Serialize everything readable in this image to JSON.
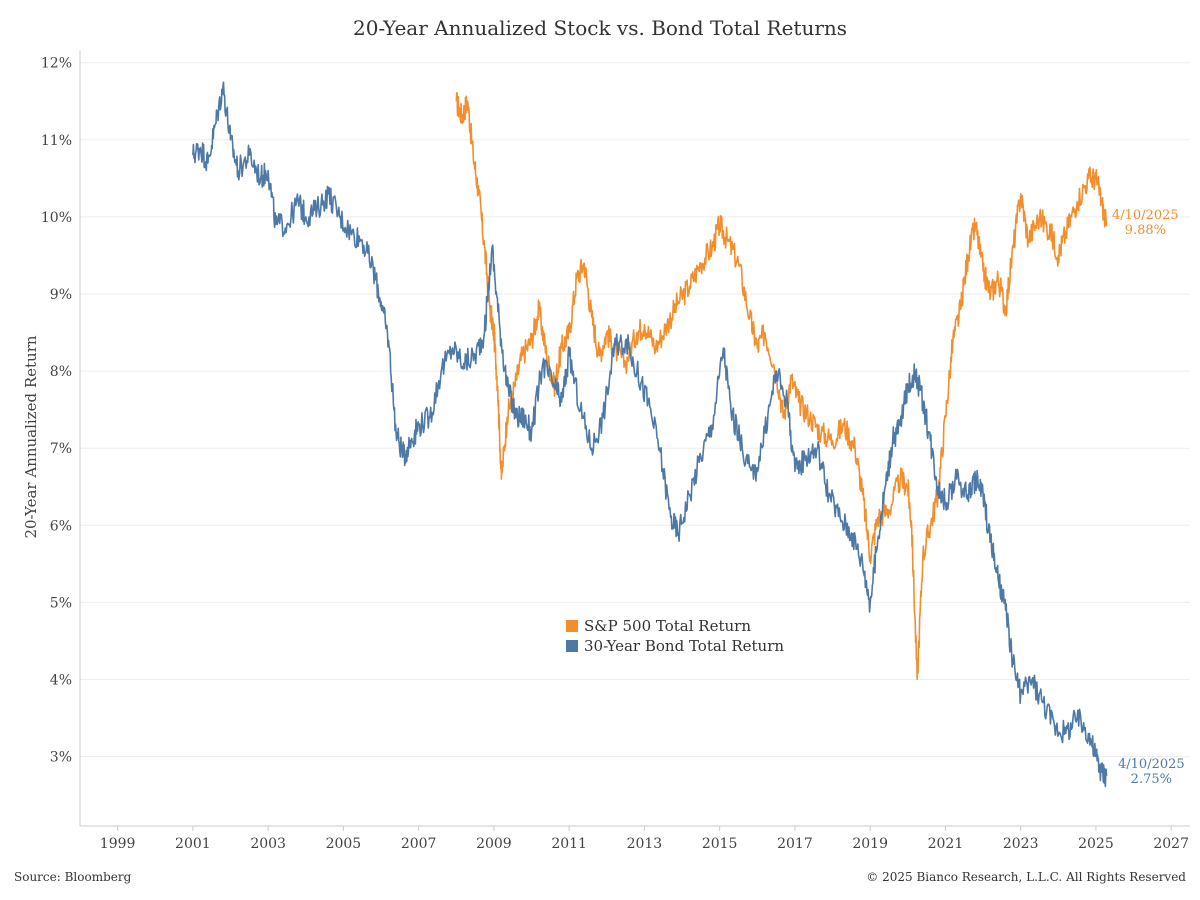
{
  "chart_data": {
    "type": "line",
    "title": "20-Year Annualized Stock vs. Bond Total Returns",
    "ylabel": "20-Year Annualized Return",
    "xlabel": "",
    "x_ticks": [
      "1999",
      "2001",
      "2003",
      "2005",
      "2007",
      "2009",
      "2011",
      "2013",
      "2015",
      "2017",
      "2019",
      "2021",
      "2023",
      "2025",
      "2027"
    ],
    "y_ticks": [
      "3%",
      "4%",
      "5%",
      "6%",
      "7%",
      "8%",
      "9%",
      "10%",
      "11%",
      "12%"
    ],
    "xlim": [
      1998,
      2027.5
    ],
    "ylim": [
      2.1,
      12.1
    ],
    "grid": "horizontal",
    "legend_position": "center",
    "series": [
      {
        "name": "S&P 500 Total Return",
        "color": "#f28e2b",
        "end_label": {
          "date": "4/10/2025",
          "value": "9.88%"
        },
        "points": [
          [
            2008.0,
            11.5
          ],
          [
            2008.15,
            11.3
          ],
          [
            2008.3,
            11.5
          ],
          [
            2008.45,
            10.8
          ],
          [
            2008.6,
            10.3
          ],
          [
            2008.75,
            9.6
          ],
          [
            2008.9,
            8.8
          ],
          [
            2009.0,
            8.5
          ],
          [
            2009.1,
            7.8
          ],
          [
            2009.2,
            6.6
          ],
          [
            2009.35,
            7.4
          ],
          [
            2009.55,
            7.8
          ],
          [
            2009.75,
            8.2
          ],
          [
            2010.0,
            8.4
          ],
          [
            2010.2,
            8.8
          ],
          [
            2010.4,
            8.2
          ],
          [
            2010.6,
            7.8
          ],
          [
            2010.8,
            8.3
          ],
          [
            2011.0,
            8.5
          ],
          [
            2011.2,
            9.2
          ],
          [
            2011.4,
            9.4
          ],
          [
            2011.6,
            8.7
          ],
          [
            2011.8,
            8.2
          ],
          [
            2012.0,
            8.5
          ],
          [
            2012.2,
            8.3
          ],
          [
            2012.5,
            8.1
          ],
          [
            2012.8,
            8.5
          ],
          [
            2013.0,
            8.6
          ],
          [
            2013.3,
            8.3
          ],
          [
            2013.6,
            8.6
          ],
          [
            2013.9,
            8.9
          ],
          [
            2014.2,
            9.1
          ],
          [
            2014.5,
            9.4
          ],
          [
            2014.8,
            9.6
          ],
          [
            2015.0,
            9.9
          ],
          [
            2015.2,
            9.7
          ],
          [
            2015.5,
            9.4
          ],
          [
            2015.8,
            8.7
          ],
          [
            2016.0,
            8.3
          ],
          [
            2016.2,
            8.5
          ],
          [
            2016.5,
            8.0
          ],
          [
            2016.7,
            7.4
          ],
          [
            2016.9,
            7.9
          ],
          [
            2017.1,
            7.6
          ],
          [
            2017.4,
            7.4
          ],
          [
            2017.7,
            7.2
          ],
          [
            2018.0,
            7.1
          ],
          [
            2018.3,
            7.3
          ],
          [
            2018.6,
            7.0
          ],
          [
            2018.8,
            6.4
          ],
          [
            2019.0,
            5.6
          ],
          [
            2019.2,
            6.1
          ],
          [
            2019.5,
            6.2
          ],
          [
            2019.8,
            6.6
          ],
          [
            2020.0,
            6.5
          ],
          [
            2020.1,
            6.0
          ],
          [
            2020.25,
            4.0
          ],
          [
            2020.4,
            5.6
          ],
          [
            2020.6,
            6.0
          ],
          [
            2020.8,
            6.4
          ],
          [
            2021.0,
            7.4
          ],
          [
            2021.2,
            8.4
          ],
          [
            2021.4,
            8.8
          ],
          [
            2021.6,
            9.5
          ],
          [
            2021.8,
            9.9
          ],
          [
            2022.0,
            9.3
          ],
          [
            2022.2,
            9.0
          ],
          [
            2022.4,
            9.2
          ],
          [
            2022.6,
            8.8
          ],
          [
            2022.8,
            9.6
          ],
          [
            2023.0,
            10.3
          ],
          [
            2023.2,
            9.7
          ],
          [
            2023.5,
            10.0
          ],
          [
            2023.8,
            9.8
          ],
          [
            2024.0,
            9.5
          ],
          [
            2024.2,
            9.8
          ],
          [
            2024.5,
            10.2
          ],
          [
            2024.8,
            10.5
          ],
          [
            2025.0,
            10.5
          ],
          [
            2025.15,
            10.2
          ],
          [
            2025.28,
            9.88
          ]
        ]
      },
      {
        "name": "30-Year Bond Total Return",
        "color": "#4e79a7",
        "end_label": {
          "date": "4/10/2025",
          "value": "2.75%"
        },
        "points": [
          [
            2001.0,
            10.8
          ],
          [
            2001.2,
            10.9
          ],
          [
            2001.4,
            10.7
          ],
          [
            2001.6,
            11.2
          ],
          [
            2001.8,
            11.7
          ],
          [
            2002.0,
            11.0
          ],
          [
            2002.2,
            10.6
          ],
          [
            2002.5,
            10.8
          ],
          [
            2002.8,
            10.5
          ],
          [
            2003.0,
            10.6
          ],
          [
            2003.2,
            9.9
          ],
          [
            2003.5,
            9.9
          ],
          [
            2003.8,
            10.2
          ],
          [
            2004.0,
            10.0
          ],
          [
            2004.3,
            10.1
          ],
          [
            2004.6,
            10.3
          ],
          [
            2004.9,
            10.0
          ],
          [
            2005.2,
            9.8
          ],
          [
            2005.5,
            9.7
          ],
          [
            2005.8,
            9.3
          ],
          [
            2006.0,
            8.9
          ],
          [
            2006.2,
            8.4
          ],
          [
            2006.4,
            7.2
          ],
          [
            2006.6,
            6.9
          ],
          [
            2006.8,
            7.1
          ],
          [
            2007.0,
            7.3
          ],
          [
            2007.3,
            7.4
          ],
          [
            2007.6,
            8.0
          ],
          [
            2007.9,
            8.3
          ],
          [
            2008.2,
            8.1
          ],
          [
            2008.5,
            8.2
          ],
          [
            2008.75,
            8.5
          ],
          [
            2008.95,
            9.6
          ],
          [
            2009.15,
            8.6
          ],
          [
            2009.35,
            7.8
          ],
          [
            2009.6,
            7.4
          ],
          [
            2009.8,
            7.4
          ],
          [
            2010.0,
            7.2
          ],
          [
            2010.3,
            8.1
          ],
          [
            2010.6,
            7.8
          ],
          [
            2010.8,
            7.6
          ],
          [
            2011.0,
            8.2
          ],
          [
            2011.3,
            7.5
          ],
          [
            2011.6,
            7.0
          ],
          [
            2011.9,
            7.4
          ],
          [
            2012.2,
            8.3
          ],
          [
            2012.5,
            8.4
          ],
          [
            2012.8,
            8.0
          ],
          [
            2013.1,
            7.6
          ],
          [
            2013.4,
            7.0
          ],
          [
            2013.7,
            6.1
          ],
          [
            2013.9,
            5.9
          ],
          [
            2014.2,
            6.4
          ],
          [
            2014.5,
            6.9
          ],
          [
            2014.8,
            7.3
          ],
          [
            2015.1,
            8.3
          ],
          [
            2015.3,
            7.5
          ],
          [
            2015.6,
            7.0
          ],
          [
            2015.9,
            6.6
          ],
          [
            2016.2,
            7.2
          ],
          [
            2016.5,
            8.0
          ],
          [
            2016.8,
            7.6
          ],
          [
            2017.0,
            6.7
          ],
          [
            2017.3,
            6.9
          ],
          [
            2017.6,
            7.0
          ],
          [
            2017.9,
            6.4
          ],
          [
            2018.2,
            6.1
          ],
          [
            2018.5,
            5.9
          ],
          [
            2018.8,
            5.5
          ],
          [
            2019.0,
            5.0
          ],
          [
            2019.2,
            5.8
          ],
          [
            2019.4,
            6.5
          ],
          [
            2019.6,
            7.1
          ],
          [
            2019.8,
            7.3
          ],
          [
            2020.0,
            7.8
          ],
          [
            2020.2,
            8.0
          ],
          [
            2020.4,
            7.6
          ],
          [
            2020.6,
            7.1
          ],
          [
            2020.8,
            6.5
          ],
          [
            2021.0,
            6.3
          ],
          [
            2021.3,
            6.6
          ],
          [
            2021.6,
            6.4
          ],
          [
            2021.8,
            6.6
          ],
          [
            2022.0,
            6.4
          ],
          [
            2022.2,
            5.8
          ],
          [
            2022.4,
            5.3
          ],
          [
            2022.6,
            4.9
          ],
          [
            2022.8,
            4.2
          ],
          [
            2023.0,
            3.8
          ],
          [
            2023.3,
            4.0
          ],
          [
            2023.6,
            3.7
          ],
          [
            2023.9,
            3.4
          ],
          [
            2024.2,
            3.3
          ],
          [
            2024.5,
            3.5
          ],
          [
            2024.8,
            3.3
          ],
          [
            2025.0,
            3.0
          ],
          [
            2025.15,
            2.8
          ],
          [
            2025.28,
            2.75
          ]
        ]
      }
    ]
  },
  "footer": {
    "source": "Source: Bloomberg",
    "copyright": "© 2025 Bianco Research, L.L.C. All Rights Reserved"
  }
}
